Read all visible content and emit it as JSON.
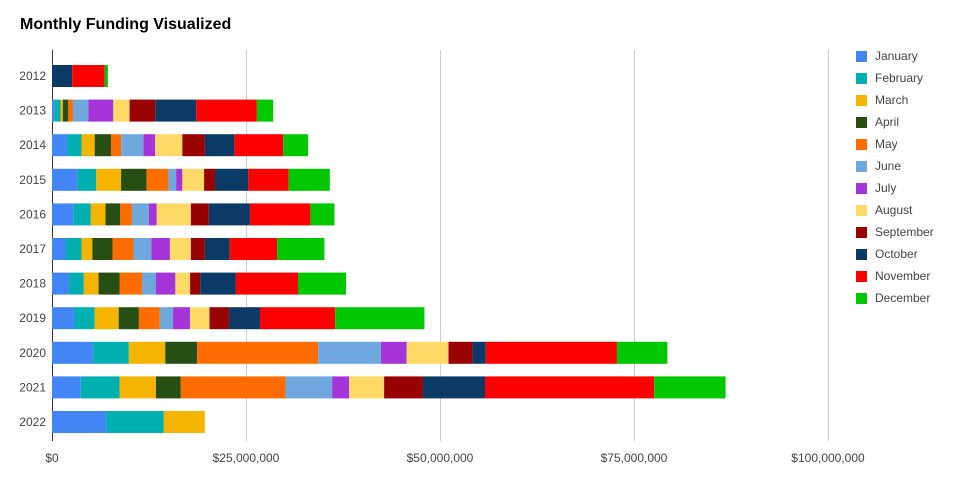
{
  "chart_data": {
    "type": "bar",
    "orientation": "horizontal",
    "stacked": true,
    "title": "Monthly Funding Visualized",
    "categories": [
      "2012",
      "2013",
      "2014",
      "2015",
      "2016",
      "2017",
      "2018",
      "2019",
      "2020",
      "2021",
      "2022"
    ],
    "xlim": [
      0,
      100000000
    ],
    "x_ticks": [
      0,
      25000000,
      50000000,
      75000000,
      100000000
    ],
    "x_tick_labels": [
      "$0",
      "$25,000,000",
      "$50,000,000",
      "$75,000,000",
      "$100,000,000"
    ],
    "grid": "vertical",
    "legend_position": "right",
    "series": [
      {
        "name": "January",
        "color": "#4285f4",
        "values": [
          0,
          300000,
          2000000,
          3300000,
          2800000,
          1800000,
          2200000,
          2900000,
          5300000,
          3700000,
          7000000
        ]
      },
      {
        "name": "February",
        "color": "#00b0b0",
        "values": [
          0,
          800000,
          1800000,
          2400000,
          2200000,
          2000000,
          1900000,
          2600000,
          4600000,
          5000000,
          7400000
        ]
      },
      {
        "name": "March",
        "color": "#f4b400",
        "values": [
          0,
          300000,
          1700000,
          3200000,
          1900000,
          1400000,
          1900000,
          3100000,
          4700000,
          4700000,
          5300000
        ]
      },
      {
        "name": "April",
        "color": "#274e13",
        "values": [
          0,
          700000,
          2100000,
          3300000,
          1900000,
          2600000,
          2700000,
          2600000,
          4100000,
          3200000,
          0
        ]
      },
      {
        "name": "May",
        "color": "#ff6d00",
        "values": [
          0,
          600000,
          1300000,
          2800000,
          1500000,
          2700000,
          2900000,
          2700000,
          15600000,
          13500000,
          0
        ]
      },
      {
        "name": "June",
        "color": "#6fa8dc",
        "values": [
          0,
          2000000,
          2900000,
          1000000,
          2200000,
          2300000,
          1800000,
          1700000,
          8100000,
          6000000,
          0
        ]
      },
      {
        "name": "July",
        "color": "#a535d8",
        "values": [
          0,
          3200000,
          1500000,
          800000,
          1000000,
          2400000,
          2500000,
          2200000,
          3300000,
          2200000,
          0
        ]
      },
      {
        "name": "August",
        "color": "#ffd966",
        "values": [
          0,
          2100000,
          3500000,
          2800000,
          4400000,
          2700000,
          1900000,
          2500000,
          5400000,
          4500000,
          0
        ]
      },
      {
        "name": "September",
        "color": "#990000",
        "values": [
          0,
          3300000,
          2900000,
          1400000,
          2300000,
          1800000,
          1300000,
          2500000,
          3100000,
          5000000,
          0
        ]
      },
      {
        "name": "October",
        "color": "#0b3a66",
        "values": [
          2600000,
          5300000,
          3800000,
          4300000,
          5300000,
          3200000,
          4600000,
          4000000,
          1700000,
          8000000,
          0
        ]
      },
      {
        "name": "November",
        "color": "#ff0000",
        "values": [
          4200000,
          7800000,
          6300000,
          5200000,
          7800000,
          6100000,
          8000000,
          9700000,
          16900000,
          21800000,
          0
        ]
      },
      {
        "name": "December",
        "color": "#00c800",
        "values": [
          400000,
          2100000,
          3200000,
          5300000,
          3100000,
          6100000,
          6200000,
          11500000,
          6500000,
          9200000,
          0
        ]
      }
    ]
  }
}
